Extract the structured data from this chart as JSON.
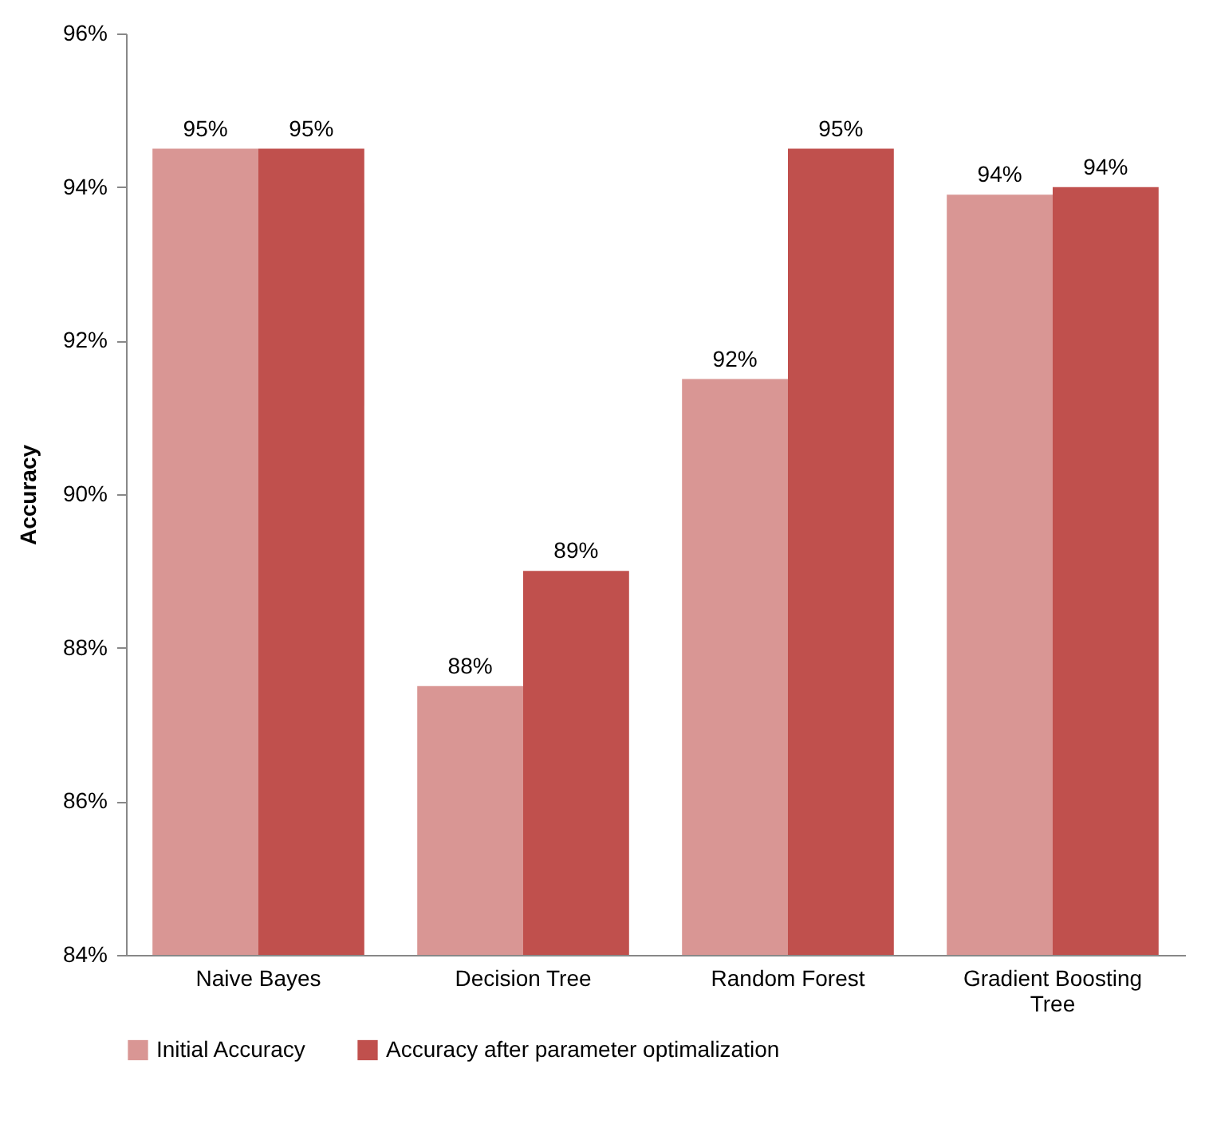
{
  "chart_data": {
    "type": "bar",
    "ylabel": "Accuracy",
    "categories": [
      "Naive Bayes",
      "Decision Tree",
      "Random Forest",
      "Gradient Boosting Tree"
    ],
    "series": [
      {
        "name": "Initial Accuracy",
        "color": "#d99694",
        "values": [
          94.5,
          87.5,
          91.5,
          93.9
        ],
        "value_labels": [
          "95%",
          "88%",
          "92%",
          "94%"
        ]
      },
      {
        "name": "Accuracy after parameter optimalization",
        "color": "#c0504d",
        "values": [
          94.5,
          89.0,
          94.5,
          94.0
        ],
        "value_labels": [
          "95%",
          "89%",
          "95%",
          "94%"
        ]
      }
    ],
    "ylim": [
      84,
      96
    ],
    "yticks": [
      {
        "value": 84,
        "label": "84%"
      },
      {
        "value": 86,
        "label": "86%"
      },
      {
        "value": 88,
        "label": "88%"
      },
      {
        "value": 90,
        "label": "90%"
      },
      {
        "value": 92,
        "label": "92%"
      },
      {
        "value": 94,
        "label": "94%"
      },
      {
        "value": 96,
        "label": "96%"
      }
    ],
    "grid": false,
    "legend": "bottom"
  }
}
